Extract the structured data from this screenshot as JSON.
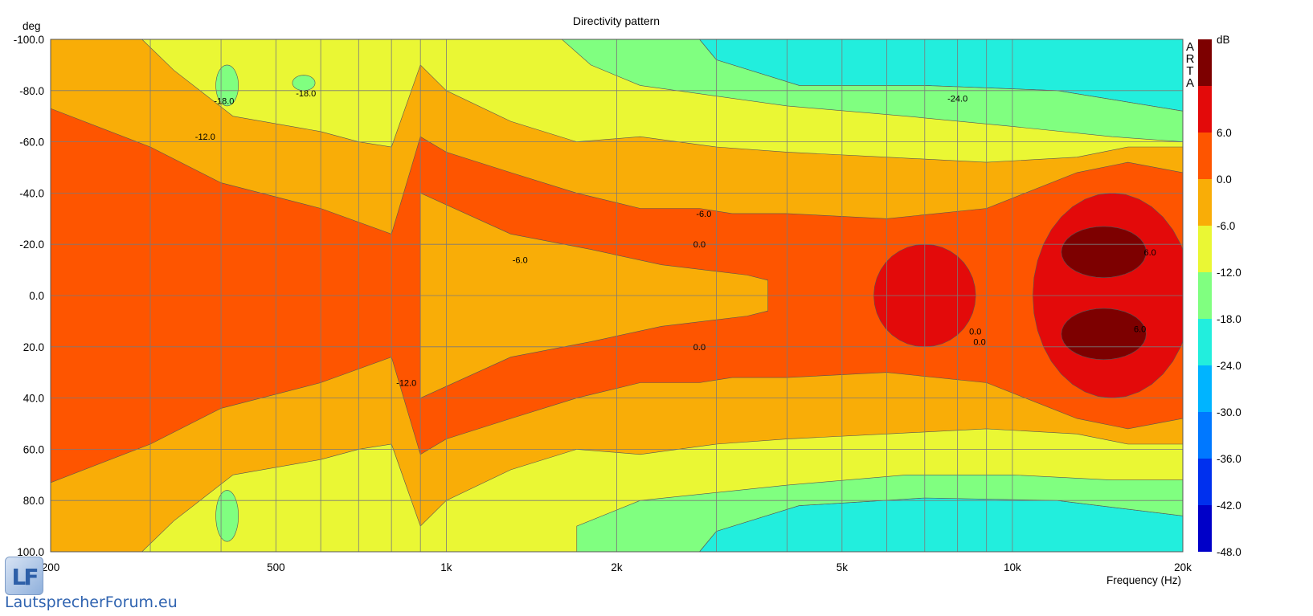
{
  "chart_data": {
    "type": "heatmap",
    "title": "Directivity pattern",
    "xlabel": "Frequency (Hz)",
    "ylabel": "deg",
    "x_scale": "log",
    "xlim": [
      200,
      20000
    ],
    "ylim": [
      -100,
      100
    ],
    "x_ticks": [
      {
        "value": 200,
        "label": "200"
      },
      {
        "value": 500,
        "label": "500"
      },
      {
        "value": 1000,
        "label": "1k"
      },
      {
        "value": 2000,
        "label": "2k"
      },
      {
        "value": 5000,
        "label": "5k"
      },
      {
        "value": 10000,
        "label": "10k"
      },
      {
        "value": 20000,
        "label": "20k"
      }
    ],
    "y_ticks": [
      {
        "value": -100,
        "label": "-100.0"
      },
      {
        "value": -80,
        "label": "-80.0"
      },
      {
        "value": -60,
        "label": "-60.0"
      },
      {
        "value": -40,
        "label": "-40.0"
      },
      {
        "value": -20,
        "label": "-20.0"
      },
      {
        "value": 0,
        "label": "0.0"
      },
      {
        "value": 20,
        "label": "20.0"
      },
      {
        "value": 40,
        "label": "40.0"
      },
      {
        "value": 60,
        "label": "60.0"
      },
      {
        "value": 80,
        "label": "80.0"
      },
      {
        "value": 100,
        "label": "100.0"
      }
    ],
    "colorbar": {
      "unit": "dB",
      "levels": [
        {
          "min": -48,
          "max": -42,
          "color": "#0000c8"
        },
        {
          "min": -42,
          "max": -36,
          "color": "#0030ee"
        },
        {
          "min": -36,
          "max": -30,
          "color": "#0078ff"
        },
        {
          "min": -30,
          "max": -24,
          "color": "#00b4ff"
        },
        {
          "min": -24,
          "max": -18,
          "color": "#22eedd"
        },
        {
          "min": -18,
          "max": -12,
          "color": "#80ff80"
        },
        {
          "min": -12,
          "max": -6,
          "color": "#eaf734"
        },
        {
          "min": -6,
          "max": 0,
          "color": "#f9ad07"
        },
        {
          "min": 0,
          "max": 6,
          "color": "#fe5500"
        },
        {
          "min": 6,
          "max": 12,
          "color": "#e30a0a"
        },
        {
          "min": 12,
          "max": 18,
          "color": "#7d0000"
        }
      ],
      "tick_labels": [
        "6.0",
        "0.0",
        "-6.0",
        "-12.0",
        "-18.0",
        "-24.0",
        "-30.0",
        "-36.0",
        "-42.0",
        "-48.0"
      ],
      "tick_values": [
        6,
        0,
        -6,
        -12,
        -18,
        -24,
        -30,
        -36,
        -42,
        -48
      ]
    },
    "contour_labels": [
      {
        "text": "-18.0",
        "freq": 405,
        "deg": -76
      },
      {
        "text": "-18.0",
        "freq": 565,
        "deg": -79
      },
      {
        "text": "-12.0",
        "freq": 375,
        "deg": -62
      },
      {
        "text": "-24.0",
        "freq": 8000,
        "deg": -77
      },
      {
        "text": "-6.0",
        "freq": 2850,
        "deg": -32
      },
      {
        "text": "-6.0",
        "freq": 1350,
        "deg": -14
      },
      {
        "text": "0.0",
        "freq": 2800,
        "deg": -20
      },
      {
        "text": "0.0",
        "freq": 2800,
        "deg": 20
      },
      {
        "text": "-12.0",
        "freq": 850,
        "deg": 34
      },
      {
        "text": "0.0",
        "freq": 8600,
        "deg": 14
      },
      {
        "text": "0.0",
        "freq": 8750,
        "deg": 18
      },
      {
        "text": "6.0",
        "freq": 17500,
        "deg": -17
      },
      {
        "text": "6.0",
        "freq": 16800,
        "deg": 13
      }
    ],
    "regions": [
      {
        "level": "0 to 6",
        "freq": [
          200,
          19000
        ],
        "deg_span_at_200": [
          -73,
          73
        ],
        "narrowing_to": [
          -8,
          8
        ],
        "note": "main on-axis lobe"
      },
      {
        "level": "6 to 12",
        "freq": [
          5000,
          20000
        ],
        "deg": [
          -40,
          40
        ]
      },
      {
        "level": "12 to 18",
        "freq": [
          12000,
          17500
        ],
        "deg": [
          -27,
          -6
        ]
      },
      {
        "level": "12 to 18",
        "freq": [
          12000,
          17500
        ],
        "deg": [
          6,
          26
        ]
      }
    ],
    "grid": true,
    "legend": "right"
  },
  "watermark": {
    "brand_text": "LautsprecherForum.eu",
    "logo_letters": "LF",
    "vertical_mark": [
      "A",
      "R",
      "T",
      "A"
    ]
  }
}
